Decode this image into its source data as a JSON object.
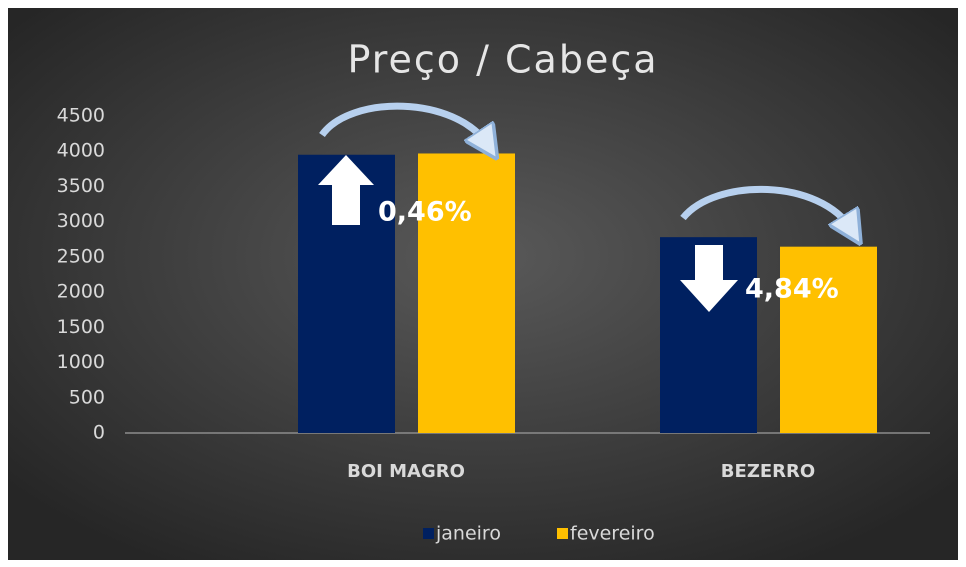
{
  "chart_data": {
    "type": "bar",
    "title": "Preço / Cabeça",
    "categories": [
      "BOI MAGRO",
      "BEZERRO"
    ],
    "series": [
      {
        "name": "janeiro",
        "color": "#002060",
        "values": [
          3950,
          2780
        ]
      },
      {
        "name": "fevereiro",
        "color": "#ffc000",
        "values": [
          3968,
          2645
        ]
      }
    ],
    "annotations": [
      "0,46%",
      "4,84%"
    ],
    "ylim": [
      0,
      4500
    ],
    "yticks": [
      0,
      500,
      1000,
      1500,
      2000,
      2500,
      3000,
      3500,
      4000,
      4500
    ],
    "grid": false,
    "legend": "bottom"
  }
}
